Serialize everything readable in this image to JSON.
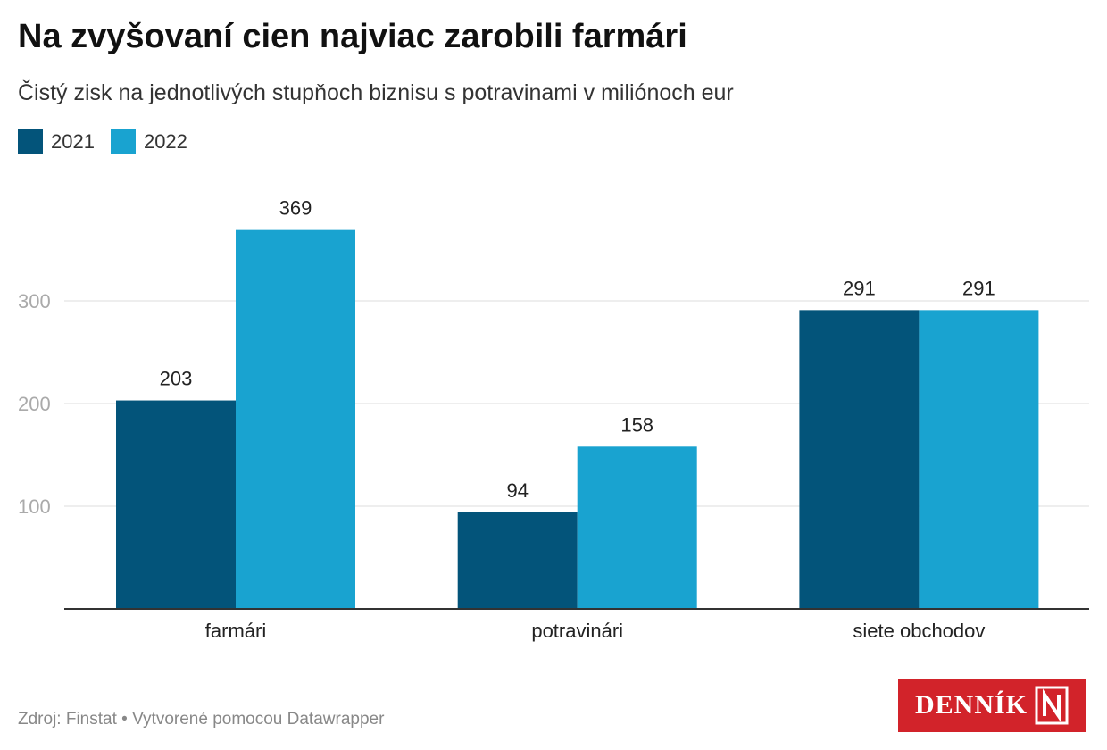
{
  "chart_data": {
    "type": "bar",
    "title": "Na zvyšovaní cien najviac zarobili farmári",
    "subtitle": "Čistý zisk na jednotlivých stupňoch biznisu s potravinami v miliónoch eur",
    "categories": [
      "farmári",
      "potravinári",
      "siete obchodov"
    ],
    "series": [
      {
        "name": "2021",
        "color": "#03547a",
        "values": [
          203,
          94,
          291
        ]
      },
      {
        "name": "2022",
        "color": "#19a3d0",
        "values": [
          369,
          158,
          291
        ]
      }
    ],
    "ylim": [
      0,
      390
    ],
    "yticks": [
      100,
      200,
      300
    ],
    "grid": true,
    "legend": "top-left",
    "source": "Zdroj: Finstat • Vytvorené pomocou Datawrapper"
  },
  "logo": {
    "text": "DENNÍK",
    "mark_icon": "denník-n-logo-icon",
    "color": "#d2232a"
  }
}
